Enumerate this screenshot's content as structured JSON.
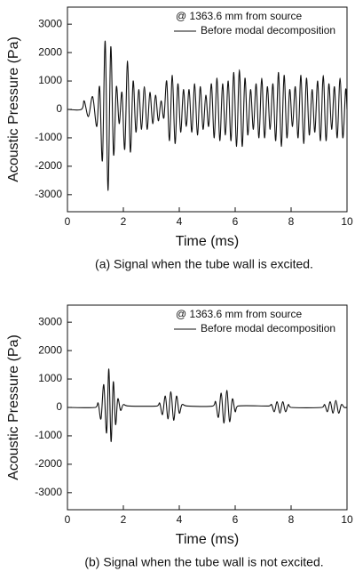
{
  "chart_data": [
    {
      "type": "line",
      "annotation": "@ 1363.6 mm from source",
      "x_label": "Time (ms)",
      "y_label": "Acoustic Pressure (Pa)",
      "caption": "(a) Signal when the tube wall is excited.",
      "x": [
        0,
        0.5,
        0.6,
        0.75,
        0.9,
        1.05,
        1.15,
        1.25,
        1.35,
        1.45,
        1.55,
        1.65,
        1.75,
        1.85,
        1.95,
        2.05,
        2.15,
        2.25,
        2.35,
        2.45,
        2.55,
        2.65,
        2.75,
        2.85,
        2.95,
        3.05,
        3.15,
        3.25,
        3.35,
        3.45,
        3.55,
        3.65,
        3.75,
        3.85,
        3.95,
        4.05,
        4.15,
        4.25,
        4.35,
        4.45,
        4.55,
        4.65,
        4.75,
        4.85,
        4.95,
        5.05,
        5.15,
        5.25,
        5.35,
        5.45,
        5.55,
        5.65,
        5.75,
        5.85,
        5.95,
        6.05,
        6.15,
        6.25,
        6.35,
        6.45,
        6.55,
        6.65,
        6.75,
        6.85,
        6.95,
        7.05,
        7.15,
        7.25,
        7.35,
        7.45,
        7.55,
        7.65,
        7.75,
        7.85,
        7.95,
        8.05,
        8.15,
        8.25,
        8.35,
        8.45,
        8.55,
        8.65,
        8.75,
        8.85,
        8.95,
        9.05,
        9.15,
        9.25,
        9.35,
        9.45,
        9.55,
        9.65,
        9.75,
        9.85,
        9.95,
        10
      ],
      "series": [
        {
          "name": "Before modal decomposition",
          "color": "#111111",
          "values": [
            0,
            0,
            300,
            -250,
            450,
            -600,
            800,
            -1800,
            2400,
            -2850,
            2200,
            -1600,
            800,
            -500,
            600,
            -1400,
            1700,
            -1500,
            1000,
            -800,
            700,
            -700,
            800,
            -700,
            600,
            -500,
            500,
            -400,
            300,
            -300,
            1000,
            -1100,
            1200,
            -1200,
            900,
            -800,
            700,
            -600,
            700,
            -800,
            900,
            -900,
            800,
            -700,
            500,
            -600,
            900,
            -1000,
            1100,
            -1100,
            900,
            -900,
            1000,
            -1100,
            1300,
            -1300,
            1400,
            -1300,
            1100,
            -900,
            700,
            -700,
            900,
            -1000,
            1100,
            -1000,
            800,
            -700,
            900,
            -1100,
            1300,
            -1300,
            1200,
            -1000,
            700,
            -600,
            800,
            -1000,
            1200,
            -1200,
            1100,
            -900,
            700,
            -800,
            1000,
            -1100,
            1200,
            -1100,
            900,
            -700,
            800,
            -1000,
            1100,
            -1000,
            700,
            0
          ]
        }
      ],
      "xlim": [
        0,
        10
      ],
      "xticks": [
        0,
        2,
        4,
        6,
        8,
        10
      ],
      "ylim": [
        -3600,
        3600
      ],
      "yticks": [
        -3000,
        -2000,
        -1000,
        0,
        1000,
        2000,
        3000
      ]
    },
    {
      "type": "line",
      "annotation": "@ 1363.6 mm from source",
      "x_label": "Time (ms)",
      "y_label": "Acoustic Pressure (Pa)",
      "caption": "(b) Signal when the tube wall is not excited.",
      "x": [
        0,
        1.0,
        1.1,
        1.2,
        1.3,
        1.4,
        1.48,
        1.56,
        1.64,
        1.72,
        1.8,
        1.9,
        2.0,
        2.2,
        3.2,
        3.3,
        3.4,
        3.5,
        3.6,
        3.7,
        3.8,
        3.9,
        4.0,
        4.1,
        4.3,
        5.2,
        5.3,
        5.4,
        5.5,
        5.6,
        5.7,
        5.8,
        5.9,
        6.0,
        6.1,
        7.2,
        7.3,
        7.4,
        7.5,
        7.6,
        7.7,
        7.8,
        7.9,
        8.0,
        9.1,
        9.2,
        9.3,
        9.4,
        9.5,
        9.6,
        9.7,
        9.8,
        9.9,
        10
      ],
      "series": [
        {
          "name": "Before modal decomposition",
          "color": "#111111",
          "values": [
            0,
            0,
            150,
            -400,
            800,
            -900,
            1350,
            -1200,
            900,
            -600,
            300,
            -100,
            100,
            50,
            50,
            150,
            -250,
            400,
            -400,
            550,
            -450,
            400,
            -200,
            100,
            50,
            50,
            200,
            -350,
            500,
            -550,
            600,
            -500,
            300,
            -150,
            50,
            50,
            100,
            -150,
            200,
            -200,
            200,
            -150,
            100,
            0,
            0,
            100,
            -150,
            200,
            -200,
            250,
            -200,
            100,
            0,
            0
          ]
        }
      ],
      "xlim": [
        0,
        10
      ],
      "xticks": [
        0,
        2,
        4,
        6,
        8,
        10
      ],
      "ylim": [
        -3600,
        3600
      ],
      "yticks": [
        -3000,
        -2000,
        -1000,
        0,
        1000,
        2000,
        3000
      ]
    }
  ]
}
